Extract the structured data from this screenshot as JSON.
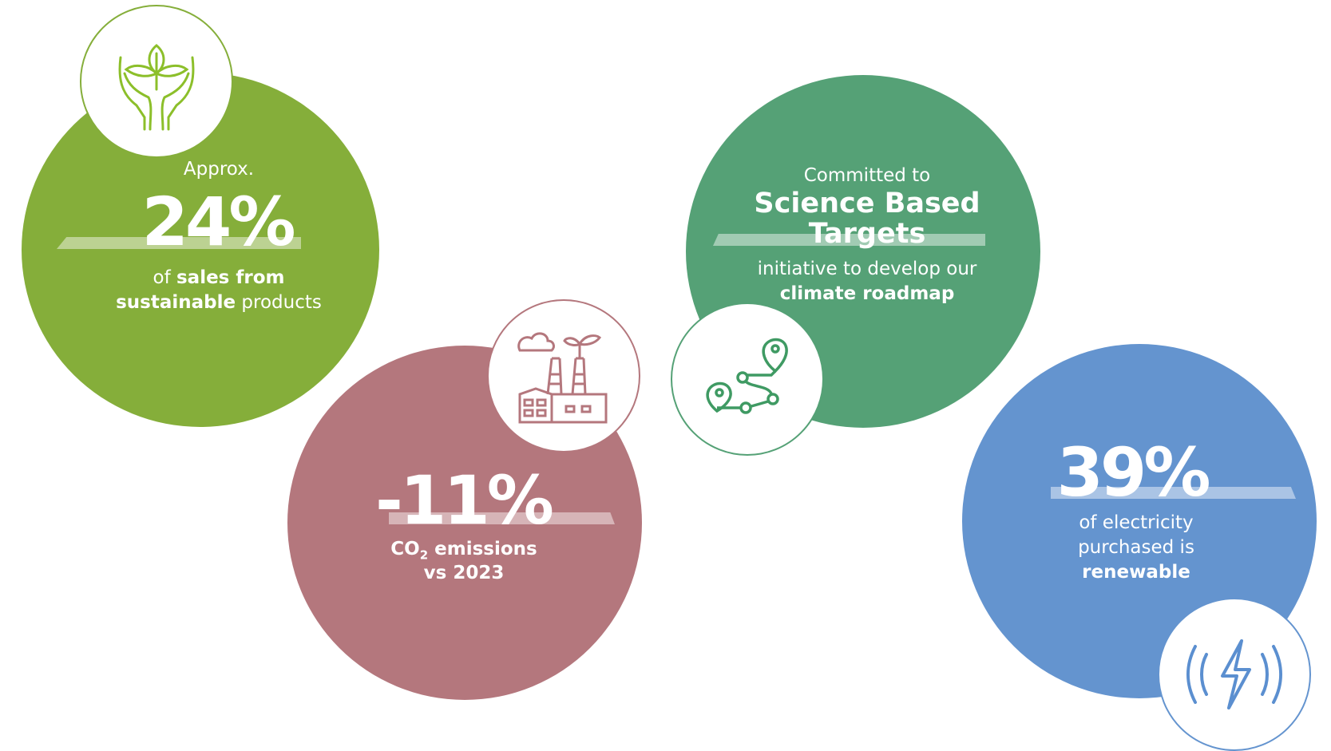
{
  "colors": {
    "green": "#85ae3a",
    "rose": "#b4777d",
    "forest": "#55a176",
    "blue": "#6494cf"
  },
  "stats": [
    {
      "icon": "hands-plant-icon",
      "pre": "Approx.",
      "value": "24%",
      "line1_a": "of ",
      "line1_b": "sales from",
      "line2_a": "sustainable",
      "line2_b": " products"
    },
    {
      "icon": "factory-plant-icon",
      "value": "-11%",
      "line1_a": "CO",
      "line1_sub": "2",
      "line1_b": " emissions",
      "line2": "vs 2023"
    },
    {
      "icon": "route-map-icon",
      "pre": "Committed to",
      "title1": "Science Based",
      "title2": "Targets",
      "line1": "initiative to develop our",
      "line2": "climate roadmap"
    },
    {
      "icon": "renewable-bolt-icon",
      "value": "39%",
      "line1": "of electricity",
      "line2": "purchased is",
      "line3": "renewable"
    }
  ]
}
